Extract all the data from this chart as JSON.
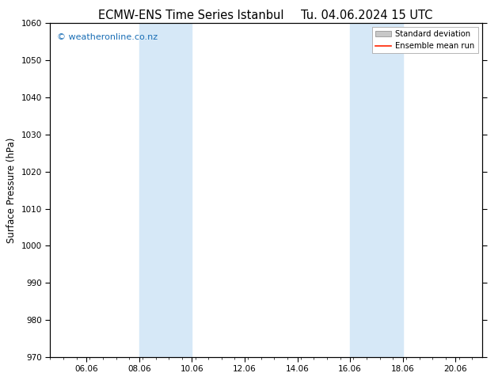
{
  "title_left": "ECMW-ENS Time Series Istanbul",
  "title_right": "Tu. 04.06.2024 15 UTC",
  "ylabel": "Surface Pressure (hPa)",
  "ylim": [
    970,
    1060
  ],
  "yticks": [
    970,
    980,
    990,
    1000,
    1010,
    1020,
    1030,
    1040,
    1050,
    1060
  ],
  "xtick_labels": [
    "06.06",
    "08.06",
    "10.06",
    "12.06",
    "14.06",
    "16.06",
    "18.06",
    "20.06"
  ],
  "xtick_days": [
    1.375,
    3.375,
    5.375,
    7.375,
    9.375,
    11.375,
    13.375,
    15.375
  ],
  "xlim": [
    0.0,
    16.375
  ],
  "shaded_bands": [
    {
      "start": 3.375,
      "end": 5.375
    },
    {
      "start": 11.375,
      "end": 13.375
    }
  ],
  "shaded_color": "#d6e8f7",
  "watermark": "© weatheronline.co.nz",
  "watermark_color": "#1a6eb5",
  "bg_color": "#ffffff",
  "legend_std_label": "Standard deviation",
  "legend_mean_label": "Ensemble mean run",
  "legend_std_color": "#c8c8c8",
  "legend_mean_color": "#ff2200",
  "title_fontsize": 10.5,
  "tick_fontsize": 7.5,
  "ylabel_fontsize": 8.5,
  "watermark_fontsize": 8
}
